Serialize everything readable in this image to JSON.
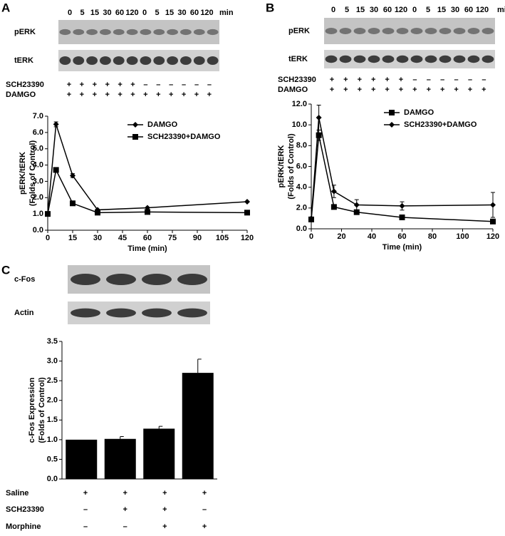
{
  "chart_data": [
    {
      "type": "line",
      "x_label": "Time (min)",
      "y_label": [
        "pERK/tERK",
        "(Folds of Control)"
      ],
      "x": [
        0,
        5,
        15,
        30,
        60,
        120
      ],
      "series": [
        {
          "name": "DAMGO",
          "color": "#000000",
          "marker": "diamond",
          "values": [
            1.0,
            6.5,
            3.35,
            1.25,
            1.38,
            1.75
          ],
          "errors": [
            null,
            0.15,
            0.12,
            null,
            null,
            null
          ]
        },
        {
          "name": "SCH23390+DAMGO",
          "color": "#000000",
          "marker": "square",
          "values": [
            1.0,
            3.7,
            1.65,
            1.08,
            1.12,
            1.08
          ],
          "errors": [
            null,
            0.1,
            null,
            null,
            null,
            null
          ]
        }
      ],
      "xlim": [
        0,
        120
      ],
      "xticks": [
        0,
        15,
        30,
        45,
        60,
        75,
        90,
        105,
        120
      ],
      "ylim": [
        0,
        7
      ],
      "yticks": [
        {
          "value": 0,
          "label": "0.0"
        },
        {
          "value": 1,
          "label": "1.0"
        },
        {
          "value": 2,
          "label": "2.0"
        },
        {
          "value": 3,
          "label": "3.0"
        },
        {
          "value": 4,
          "label": "4.0"
        },
        {
          "value": 5,
          "label": "5.0"
        },
        {
          "value": 6,
          "label": "6.0"
        },
        {
          "value": 7,
          "label": "7.0"
        }
      ],
      "legend": "upper right"
    },
    {
      "type": "line",
      "x_label": "Time (min)",
      "y_label": [
        "pERK/tERK",
        "(Folds of Control)"
      ],
      "x": [
        0,
        5,
        15,
        30,
        60,
        120
      ],
      "series": [
        {
          "name": "DAMGO",
          "color": "#000000",
          "marker": "square",
          "values": [
            0.9,
            9.0,
            2.1,
            1.6,
            1.1,
            0.7
          ],
          "errors": [
            null,
            0.5,
            null,
            null,
            null,
            null
          ]
        },
        {
          "name": "SCH23390+DAMGO",
          "color": "#000000",
          "marker": "diamond",
          "values": [
            1.0,
            10.7,
            3.6,
            2.3,
            2.2,
            2.3
          ],
          "errors": [
            null,
            1.2,
            0.6,
            0.5,
            0.4,
            1.2
          ]
        }
      ],
      "xlim": [
        0,
        120
      ],
      "xticks": [
        0,
        20,
        40,
        60,
        80,
        100,
        120
      ],
      "ylim": [
        0,
        12
      ],
      "yticks": [
        {
          "value": 0,
          "label": "0.0"
        },
        {
          "value": 2,
          "label": "2.0"
        },
        {
          "value": 4,
          "label": "4.0"
        },
        {
          "value": 6,
          "label": "6.0"
        },
        {
          "value": 8,
          "label": "8.0"
        },
        {
          "value": 10,
          "label": "10.0"
        },
        {
          "value": 12,
          "label": "12.0"
        }
      ],
      "legend": "upper right"
    },
    {
      "type": "bar",
      "y_label": [
        "c-Fos Expression",
        "(Folds of Control)"
      ],
      "values": [
        1.0,
        1.02,
        1.28,
        2.7
      ],
      "errors": [
        null,
        0.06,
        0.06,
        0.35
      ],
      "color": "#000000",
      "ylim": [
        0,
        3.5
      ],
      "yticks": [
        {
          "value": 0,
          "label": "0.0"
        },
        {
          "value": 0.5,
          "label": "0.5"
        },
        {
          "value": 1,
          "label": "1.0"
        },
        {
          "value": 1.5,
          "label": "1.5"
        },
        {
          "value": 2,
          "label": "2.0"
        },
        {
          "value": 2.5,
          "label": "2.5"
        },
        {
          "value": 3,
          "label": "3.0"
        },
        {
          "value": 3.5,
          "label": "3.5"
        }
      ]
    }
  ],
  "panels": [
    {
      "letter": "A",
      "lanes": [
        0,
        5,
        15,
        30,
        60,
        120,
        0,
        5,
        15,
        30,
        60,
        120
      ],
      "lane_unit": "min",
      "blots": [
        "pERK",
        "tERK"
      ],
      "conditions": [
        {
          "label": "SCH23390",
          "signs": [
            "+",
            "+",
            "+",
            "+",
            "+",
            "+",
            "–",
            "–",
            "–",
            "–",
            "–",
            "–"
          ]
        },
        {
          "label": "DAMGO",
          "signs": [
            "+",
            "+",
            "+",
            "+",
            "+",
            "+",
            "+",
            "+",
            "+",
            "+",
            "+",
            "+"
          ]
        }
      ]
    },
    {
      "letter": "B",
      "lanes": [
        0,
        5,
        15,
        30,
        60,
        120,
        0,
        5,
        15,
        30,
        60,
        120
      ],
      "lane_unit": "min",
      "blots": [
        "pERK",
        "tERK"
      ],
      "conditions": [
        {
          "label": "SCH23390",
          "signs": [
            "+",
            "+",
            "+",
            "+",
            "+",
            "+",
            "–",
            "–",
            "–",
            "–",
            "–",
            "–"
          ]
        },
        {
          "label": "DAMGO",
          "signs": [
            "+",
            "+",
            "+",
            "+",
            "+",
            "+",
            "+",
            "+",
            "+",
            "+",
            "+",
            "+"
          ]
        }
      ]
    },
    {
      "letter": "C",
      "blots": [
        "c-Fos",
        "Actin"
      ],
      "conditions": [
        {
          "label": "Saline",
          "signs": [
            "+",
            "+",
            "+",
            "+"
          ]
        },
        {
          "label": "SCH23390",
          "signs": [
            "–",
            "+",
            "+",
            "–"
          ]
        },
        {
          "label": "Morphine",
          "signs": [
            "–",
            "–",
            "+",
            "+"
          ]
        }
      ]
    }
  ]
}
